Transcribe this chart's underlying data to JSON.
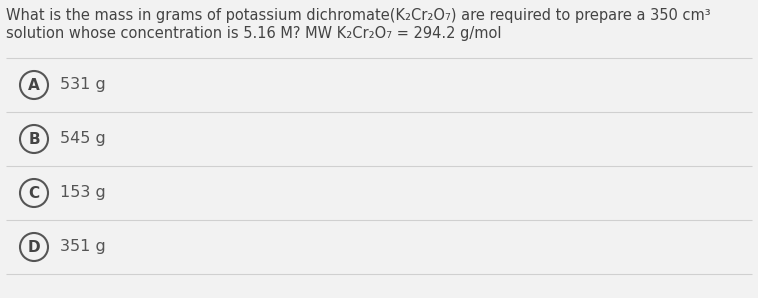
{
  "background_color": "#f2f2f2",
  "question_line1": "What is the mass in grams of potassium dichromate(K₂Cr₂O₇) are required to prepare a 350 cm³",
  "question_line2": "solution whose concentration is 5.16 M? MW K₂Cr₂O₇ = 294.2 g/mol",
  "options": [
    {
      "label": "A",
      "text": "531 g"
    },
    {
      "label": "B",
      "text": "545 g"
    },
    {
      "label": "C",
      "text": "153 g"
    },
    {
      "label": "D",
      "text": "351 g"
    }
  ],
  "separator_color": "#d0d0d0",
  "circle_fill_color": "#f2f2f2",
  "circle_edge_color": "#555555",
  "text_color": "#555555",
  "label_color": "#444444",
  "question_color": "#444444",
  "font_size_question": 10.5,
  "font_size_option": 11.5,
  "font_size_label": 11,
  "fig_width": 7.58,
  "fig_height": 2.98,
  "dpi": 100
}
